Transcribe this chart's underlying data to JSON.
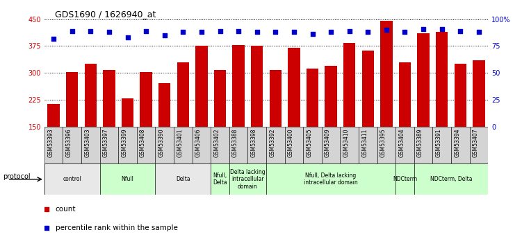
{
  "title": "GDS1690 / 1626940_at",
  "samples": [
    "GSM53393",
    "GSM53396",
    "GSM53403",
    "GSM53397",
    "GSM53399",
    "GSM53408",
    "GSM53390",
    "GSM53401",
    "GSM53406",
    "GSM53402",
    "GSM53388",
    "GSM53398",
    "GSM53392",
    "GSM53400",
    "GSM53405",
    "GSM53409",
    "GSM53410",
    "GSM53411",
    "GSM53395",
    "GSM53404",
    "GSM53389",
    "GSM53391",
    "GSM53394",
    "GSM53407"
  ],
  "counts": [
    213,
    302,
    325,
    308,
    228,
    302,
    271,
    330,
    375,
    308,
    378,
    375,
    308,
    370,
    312,
    320,
    384,
    363,
    445,
    330,
    410,
    415,
    325,
    335
  ],
  "percentiles": [
    82,
    89,
    89,
    88,
    83,
    89,
    85,
    88,
    88,
    89,
    89,
    88,
    88,
    88,
    86,
    88,
    89,
    88,
    90,
    88,
    91,
    91,
    89,
    88
  ],
  "ylim_left": [
    150,
    450
  ],
  "ylim_right": [
    0,
    100
  ],
  "yticks_left": [
    150,
    225,
    300,
    375,
    450
  ],
  "yticks_right": [
    0,
    25,
    50,
    75,
    100
  ],
  "bar_color": "#cc0000",
  "dot_color": "#0000cc",
  "protocol_groups": [
    {
      "label": "control",
      "start": 0,
      "end": 3,
      "color": "#e8e8e8"
    },
    {
      "label": "Nfull",
      "start": 3,
      "end": 6,
      "color": "#ccffcc"
    },
    {
      "label": "Delta",
      "start": 6,
      "end": 9,
      "color": "#e8e8e8"
    },
    {
      "label": "Nfull,\nDelta",
      "start": 9,
      "end": 10,
      "color": "#ccffcc"
    },
    {
      "label": "Delta lacking\nintracellular\ndomain",
      "start": 10,
      "end": 12,
      "color": "#ccffcc"
    },
    {
      "label": "Nfull, Delta lacking\nintracellular domain",
      "start": 12,
      "end": 19,
      "color": "#ccffcc"
    },
    {
      "label": "NDCterm",
      "start": 19,
      "end": 20,
      "color": "#ccffcc"
    },
    {
      "label": "NDCterm, Delta",
      "start": 20,
      "end": 24,
      "color": "#ccffcc"
    }
  ],
  "legend_count_color": "#cc0000",
  "legend_pct_color": "#0000cc"
}
